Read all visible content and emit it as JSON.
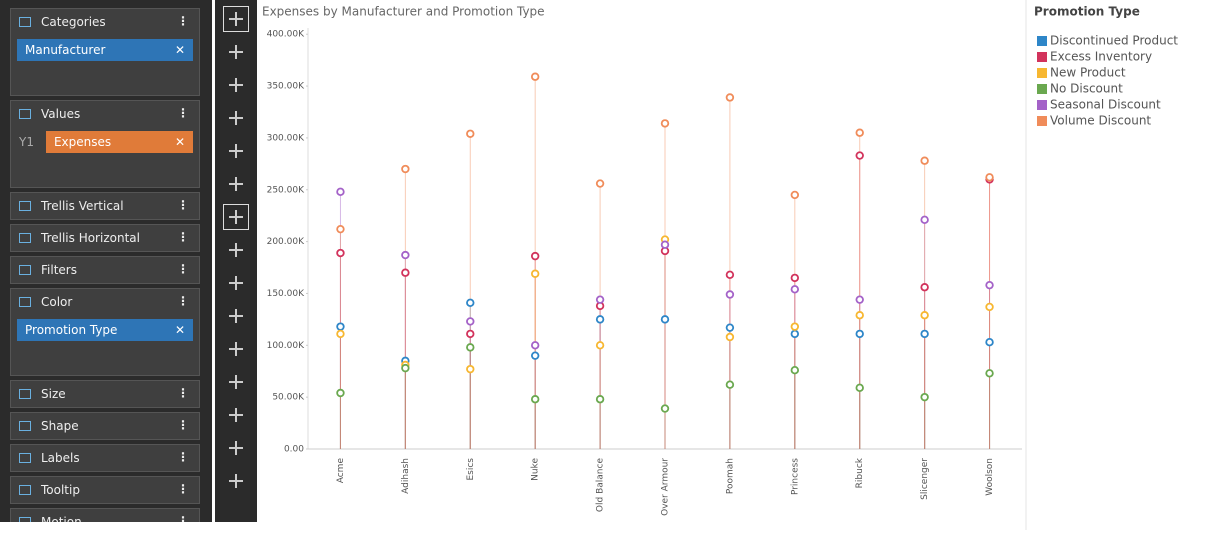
{
  "panel": {
    "sections": [
      {
        "title": "Categories",
        "items": [
          "Manufacturer"
        ]
      },
      {
        "title": "Values",
        "prefix": "Y1",
        "items": [
          "Expenses"
        ]
      },
      {
        "title": "Trellis Vertical"
      },
      {
        "title": "Trellis Horizontal"
      },
      {
        "title": "Filters"
      },
      {
        "title": "Color",
        "items": [
          "Promotion Type"
        ]
      },
      {
        "title": "Size"
      },
      {
        "title": "Shape"
      },
      {
        "title": "Labels"
      },
      {
        "title": "Tooltip"
      },
      {
        "title": "Motion"
      }
    ]
  },
  "chart_data": {
    "type": "lollipop",
    "title": "Expenses by Manufacturer and Promotion Type",
    "legend_title": "Promotion Type",
    "categories": [
      "Acme",
      "Adihash",
      "Esics",
      "Nuke",
      "Old Balance",
      "Over Armour",
      "Poomah",
      "Princess",
      "Ribuck",
      "Slicenger",
      "Woolson"
    ],
    "series": [
      {
        "name": "Discontinued Product",
        "color": "#2e86c8",
        "values": [
          118000,
          85000,
          141000,
          90000,
          125000,
          125000,
          117000,
          111000,
          111000,
          111000,
          103000
        ]
      },
      {
        "name": "Excess Inventory",
        "color": "#d2335c",
        "values": [
          189000,
          170000,
          111000,
          186000,
          138000,
          191000,
          168000,
          165000,
          283000,
          156000,
          260000
        ]
      },
      {
        "name": "New Product",
        "color": "#f7b731",
        "values": [
          111000,
          81000,
          77000,
          169000,
          100000,
          202000,
          108000,
          118000,
          129000,
          129000,
          137000
        ]
      },
      {
        "name": "No Discount",
        "color": "#6aa84f",
        "values": [
          54000,
          78000,
          98000,
          48000,
          48000,
          39000,
          62000,
          76000,
          59000,
          50000,
          73000
        ]
      },
      {
        "name": "Seasonal Discount",
        "color": "#a462c8",
        "values": [
          248000,
          187000,
          123000,
          100000,
          144000,
          197000,
          149000,
          154000,
          144000,
          221000,
          158000
        ]
      },
      {
        "name": "Volume Discount",
        "color": "#f08c5a",
        "values": [
          212000,
          270000,
          304000,
          359000,
          256000,
          314000,
          339000,
          245000,
          305000,
          278000,
          262000
        ]
      }
    ],
    "ylim": [
      0,
      406000
    ],
    "yticks": [
      {
        "value": 0,
        "label": "0.00"
      },
      {
        "value": 50000,
        "label": "50.00K"
      },
      {
        "value": 100000,
        "label": "100.00K"
      },
      {
        "value": 150000,
        "label": "150.00K"
      },
      {
        "value": 200000,
        "label": "200.00K"
      },
      {
        "value": 250000,
        "label": "250.00K"
      },
      {
        "value": 300000,
        "label": "300.00K"
      },
      {
        "value": 350000,
        "label": "350.00K"
      },
      {
        "value": 400000,
        "label": "400.00K"
      }
    ],
    "grid": false
  }
}
